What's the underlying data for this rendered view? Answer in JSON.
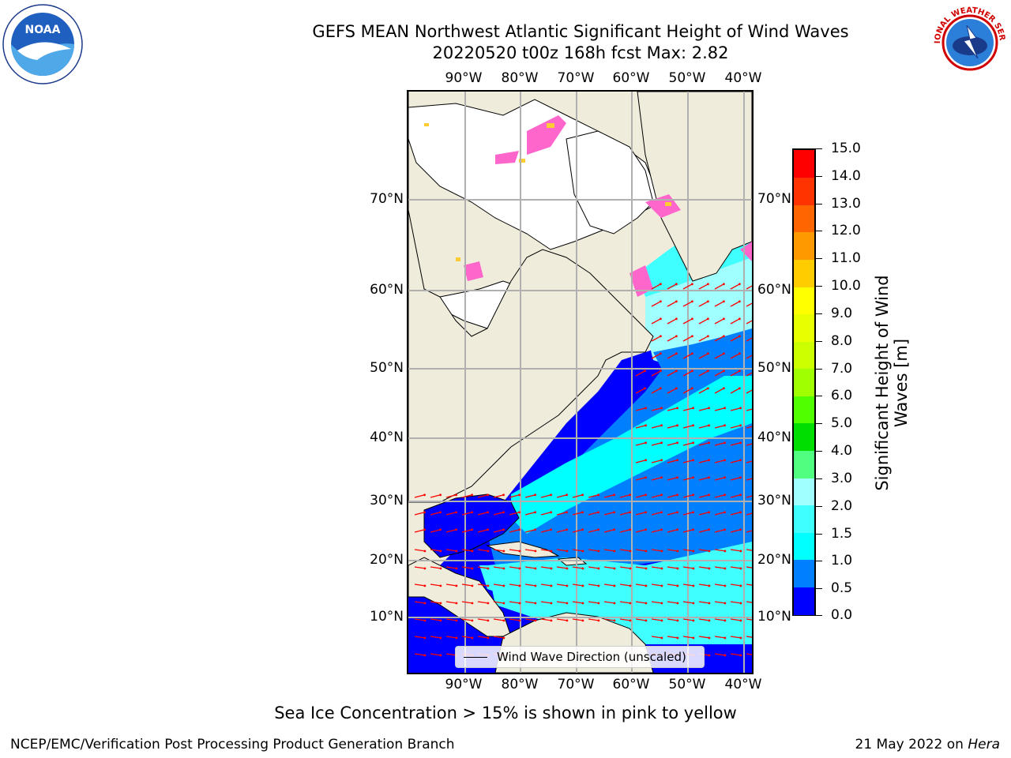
{
  "title": {
    "line1": "GEFS MEAN Northwest Atlantic Significant Height of Wind Waves",
    "line2": "20220520 t00z 168h fcst   Max: 2.82"
  },
  "map": {
    "lon_labels": [
      "90°W",
      "80°W",
      "70°W",
      "60°W",
      "50°W",
      "40°W"
    ],
    "lat_labels": [
      "70°N",
      "60°N",
      "50°N",
      "40°N",
      "30°N",
      "20°N",
      "10°N"
    ],
    "legend": "Wind Wave Direction (unscaled)",
    "colors": {
      "land": "#efecdc",
      "grid": "#b0b0b0",
      "arrow": "#ff0000",
      "ice_pink": "#ff66cc",
      "ice_yellow": "#ffcc33"
    }
  },
  "colorbar": {
    "label": "Significant Height of Wind Waves [m]",
    "ticks": [
      "0.0",
      "0.5",
      "1.0",
      "1.5",
      "2.0",
      "3.0",
      "4.0",
      "5.0",
      "6.0",
      "7.0",
      "8.0",
      "9.0",
      "10.0",
      "11.0",
      "12.0",
      "13.0",
      "14.0",
      "15.0"
    ],
    "colors": [
      "#0000ff",
      "#0080ff",
      "#00ffff",
      "#40ffff",
      "#a0ffff",
      "#50ff80",
      "#00dd00",
      "#50ff00",
      "#a0ff00",
      "#ccff00",
      "#e8ff00",
      "#ffff00",
      "#ffcc00",
      "#ff9900",
      "#ff6600",
      "#ff3300",
      "#ff0000"
    ]
  },
  "caption": "Sea Ice Concentration > 15% is shown in pink to yellow",
  "footer": {
    "left": "NCEP/EMC/Verification Post Processing Product Generation Branch",
    "date": "21 May 2022 on",
    "machine": "Hera"
  },
  "logos": {
    "noaa": "NOAA",
    "nws": "NATIONAL WEATHER SERVICE"
  }
}
